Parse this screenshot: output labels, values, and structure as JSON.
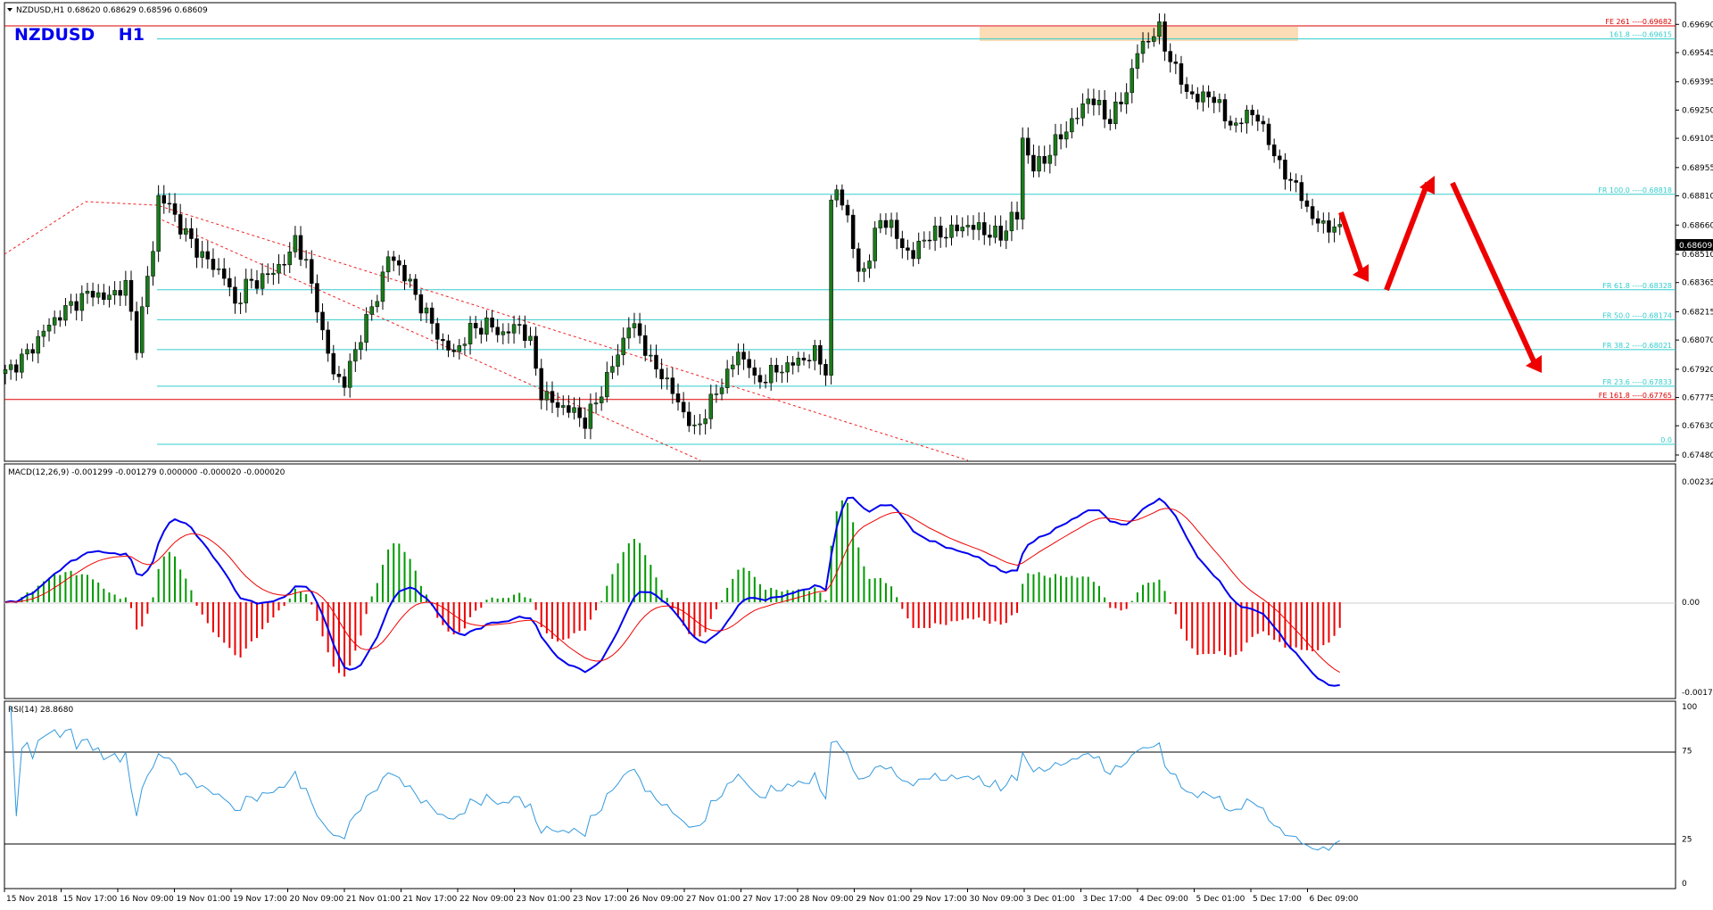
{
  "chart_data": [
    {
      "type": "candlestick",
      "header": "NZDUSD,H1  0.68620 0.68629 0.68596 0.68609",
      "title": "NZDUSD    H1",
      "ylim": [
        0.6748,
        0.6976
      ],
      "y_ticks": [
        "0.69690",
        "0.69545",
        "0.69395",
        "0.69250",
        "0.69105",
        "0.68955",
        "0.68810",
        "0.68660",
        "0.68510",
        "0.68365",
        "0.68215",
        "0.68070",
        "0.67920",
        "0.67775",
        "0.67630",
        "0.67480"
      ],
      "current_price": "0.68609",
      "fib_levels": [
        {
          "label": "FE 261 ----0.69682",
          "value": 0.69682,
          "color": "#dd0000"
        },
        {
          "label": "161.8 ----0.69615",
          "value": 0.69615,
          "color": "#33cccc"
        },
        {
          "label": "FR 100.0 ----0.68818",
          "value": 0.68818,
          "color": "#33cccc"
        },
        {
          "label": "FR 61.8 ----0.68328",
          "value": 0.68328,
          "color": "#33cccc"
        },
        {
          "label": "FR 50.0 ----0.68174",
          "value": 0.68174,
          "color": "#33cccc"
        },
        {
          "label": "FR 38.2 ----0.68021",
          "value": 0.68021,
          "color": "#33cccc"
        },
        {
          "label": "FR 23.6 ----0.67833",
          "value": 0.67833,
          "color": "#33cccc"
        },
        {
          "label": "FE 161.8 ----0.67765",
          "value": 0.67765,
          "color": "#dd0000"
        },
        {
          "label": "0.0",
          "value": 0.67535,
          "color": "#33cccc"
        }
      ],
      "close_path": [
        [
          0,
          0.679
        ],
        [
          4,
          0.68
        ],
        [
          8,
          0.6815
        ],
        [
          12,
          0.6825
        ],
        [
          16,
          0.6832
        ],
        [
          18,
          0.6828
        ],
        [
          22,
          0.6835
        ],
        [
          24,
          0.6805
        ],
        [
          27,
          0.6855
        ],
        [
          28,
          0.688
        ],
        [
          30,
          0.6876
        ],
        [
          32,
          0.6865
        ],
        [
          36,
          0.685
        ],
        [
          40,
          0.684
        ],
        [
          42,
          0.6825
        ],
        [
          44,
          0.6835
        ],
        [
          48,
          0.684
        ],
        [
          52,
          0.685
        ],
        [
          53,
          0.686
        ],
        [
          55,
          0.6845
        ],
        [
          57,
          0.6825
        ],
        [
          58,
          0.681
        ],
        [
          60,
          0.679
        ],
        [
          62,
          0.6785
        ],
        [
          65,
          0.681
        ],
        [
          68,
          0.683
        ],
        [
          70,
          0.685
        ],
        [
          72,
          0.6845
        ],
        [
          74,
          0.6835
        ],
        [
          77,
          0.682
        ],
        [
          80,
          0.6805
        ],
        [
          82,
          0.68
        ],
        [
          85,
          0.6812
        ],
        [
          88,
          0.6815
        ],
        [
          91,
          0.681
        ],
        [
          94,
          0.6815
        ],
        [
          96,
          0.6805
        ],
        [
          98,
          0.678
        ],
        [
          100,
          0.6775
        ],
        [
          104,
          0.677
        ],
        [
          106,
          0.6765
        ],
        [
          108,
          0.6775
        ],
        [
          112,
          0.68
        ],
        [
          114,
          0.6815
        ],
        [
          116,
          0.681
        ],
        [
          118,
          0.6795
        ],
        [
          120,
          0.679
        ],
        [
          122,
          0.678
        ],
        [
          124,
          0.677
        ],
        [
          126,
          0.676
        ],
        [
          128,
          0.677
        ],
        [
          130,
          0.678
        ],
        [
          132,
          0.679
        ],
        [
          134,
          0.68
        ],
        [
          136,
          0.6795
        ],
        [
          137,
          0.6785
        ],
        [
          140,
          0.679
        ],
        [
          144,
          0.6795
        ],
        [
          148,
          0.68
        ],
        [
          150,
          0.6792
        ],
        [
          151,
          0.6875
        ],
        [
          152,
          0.6885
        ],
        [
          154,
          0.687
        ],
        [
          156,
          0.684
        ],
        [
          158,
          0.685
        ],
        [
          160,
          0.687
        ],
        [
          162,
          0.6865
        ],
        [
          164,
          0.6855
        ],
        [
          166,
          0.685
        ],
        [
          168,
          0.686
        ],
        [
          172,
          0.6862
        ],
        [
          176,
          0.6866
        ],
        [
          180,
          0.6862
        ],
        [
          182,
          0.686
        ],
        [
          184,
          0.687
        ],
        [
          185,
          0.687
        ],
        [
          186,
          0.691
        ],
        [
          188,
          0.6895
        ],
        [
          190,
          0.69
        ],
        [
          193,
          0.6912
        ],
        [
          196,
          0.6922
        ],
        [
          198,
          0.6932
        ],
        [
          200,
          0.6926
        ],
        [
          202,
          0.692
        ],
        [
          205,
          0.6935
        ],
        [
          207,
          0.6955
        ],
        [
          209,
          0.6962
        ],
        [
          211,
          0.6966
        ],
        [
          212,
          0.6958
        ],
        [
          214,
          0.6945
        ],
        [
          216,
          0.6935
        ],
        [
          218,
          0.693
        ],
        [
          220,
          0.6934
        ],
        [
          222,
          0.6926
        ],
        [
          225,
          0.6915
        ],
        [
          227,
          0.6925
        ],
        [
          229,
          0.692
        ],
        [
          231,
          0.691
        ],
        [
          233,
          0.6895
        ],
        [
          235,
          0.689
        ],
        [
          237,
          0.688
        ],
        [
          239,
          0.687
        ],
        [
          241,
          0.6865
        ],
        [
          243,
          0.6866
        ],
        [
          244,
          0.6862
        ]
      ]
    },
    {
      "type": "line",
      "title": "MACD(12,26,9) -0.001299 -0.001279 0.000000 -0.000020 -0.000020",
      "ylim": [
        -0.001737,
        0.002321
      ],
      "y_ticks": [
        "0.002321",
        "0.00",
        "-0.001737"
      ],
      "series": [
        {
          "color": "#0000ee",
          "style": "macd-line"
        },
        {
          "color": "#ee0000",
          "style": "signal-line"
        },
        {
          "color": "#009900",
          "style": "histogram-positive"
        },
        {
          "color": "#ee0000",
          "style": "histogram-negative"
        }
      ]
    },
    {
      "type": "line",
      "title": "RSI(14) 28.8680",
      "ylim": [
        0,
        100
      ],
      "y_ticks": [
        "100",
        "75",
        "25",
        "0"
      ],
      "levels": [
        75,
        25
      ],
      "series": [
        {
          "color": "#3399dd",
          "style": "rsi-line"
        }
      ]
    }
  ],
  "x_labels": [
    "15 Nov 2018",
    "15 Nov 17:00",
    "16 Nov 09:00",
    "19 Nov 01:00",
    "19 Nov 17:00",
    "20 Nov 09:00",
    "21 Nov 01:00",
    "21 Nov 17:00",
    "22 Nov 09:00",
    "23 Nov 01:00",
    "23 Nov 17:00",
    "26 Nov 09:00",
    "27 Nov 01:00",
    "27 Nov 17:00",
    "28 Nov 09:00",
    "29 Nov 01:00",
    "29 Nov 17:00",
    "30 Nov 09:00",
    "3 Dec 01:00",
    "3 Dec 17:00",
    "4 Dec 09:00",
    "5 Dec 01:00",
    "5 Dec 17:00",
    "6 Dec 09:00"
  ]
}
